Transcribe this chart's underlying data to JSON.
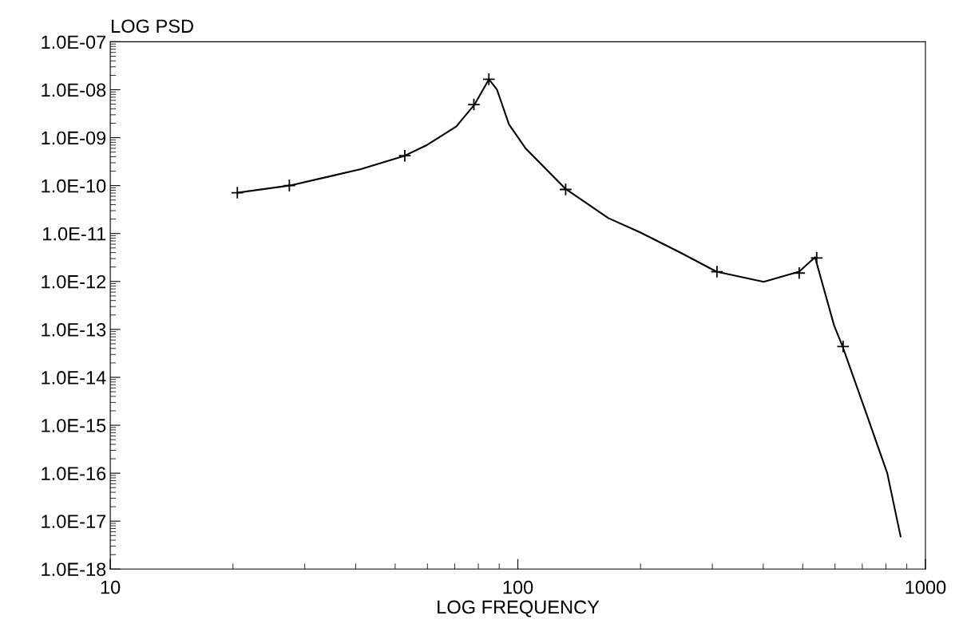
{
  "chart_data": {
    "type": "line",
    "ylabel": "LOG PSD",
    "xlabel": "LOG FREQUENCY",
    "log": "xy",
    "grid": false,
    "legend": false,
    "xlim": [
      10,
      1000
    ],
    "xticks": [
      10,
      100,
      1000
    ],
    "ylim": [
      1e-18,
      1e-07
    ],
    "yticks": [
      {
        "value": 1e-18,
        "label": "1.0E-18"
      },
      {
        "value": 1e-17,
        "label": "1.0E-17"
      },
      {
        "value": 1e-16,
        "label": "1.0E-16"
      },
      {
        "value": 1e-15,
        "label": "1.0E-15"
      },
      {
        "value": 1e-14,
        "label": "1.0E-14"
      },
      {
        "value": 1e-13,
        "label": "1.0E-13"
      },
      {
        "value": 1e-12,
        "label": "1.0E-12"
      },
      {
        "value": 1e-11,
        "label": "1.0E-11"
      },
      {
        "value": 1e-10,
        "label": "1.0E-10"
      },
      {
        "value": 1e-09,
        "label": "1.0E-09"
      },
      {
        "value": 1e-08,
        "label": "1.0E-08"
      },
      {
        "value": 1e-07,
        "label": "1.0E-07"
      }
    ],
    "series": [
      {
        "color": "#000000",
        "marker": "none",
        "line_style": "solid",
        "x": [
          20.5,
          27.5,
          32.7,
          41.2,
          52.8,
          60,
          70.6,
          78.4,
          84.9,
          88.9,
          95.1,
          104.6,
          130.6,
          166.7,
          200,
          251.8,
          307,
          401,
          490,
          536,
          597,
          625,
          719,
          806,
          869
        ],
        "values": [
          7.1e-11,
          1e-10,
          1.4e-10,
          2.2e-10,
          4.2e-10,
          7.1e-10,
          1.7e-09,
          5e-09,
          1.65e-08,
          1e-08,
          1.9e-09,
          5.9e-10,
          8.7e-11,
          2.1e-11,
          1.05e-11,
          3.9e-12,
          1.6e-12,
          9.8e-13,
          1.6e-12,
          3.2e-12,
          1.2e-13,
          4.6e-14,
          1.6e-15,
          1e-16,
          4.8e-18
        ]
      },
      {
        "type": "scatter",
        "color": "#000000",
        "marker": "cross",
        "x": [
          20.5,
          27.5,
          52.8,
          78,
          84.9,
          131,
          308,
          490,
          541,
          628
        ],
        "values": [
          7.1e-11,
          1e-10,
          4.2e-10,
          4.9e-09,
          1.65e-08,
          8.3e-11,
          1.6e-12,
          1.5e-12,
          3.1e-12,
          4.4e-14
        ]
      }
    ]
  }
}
